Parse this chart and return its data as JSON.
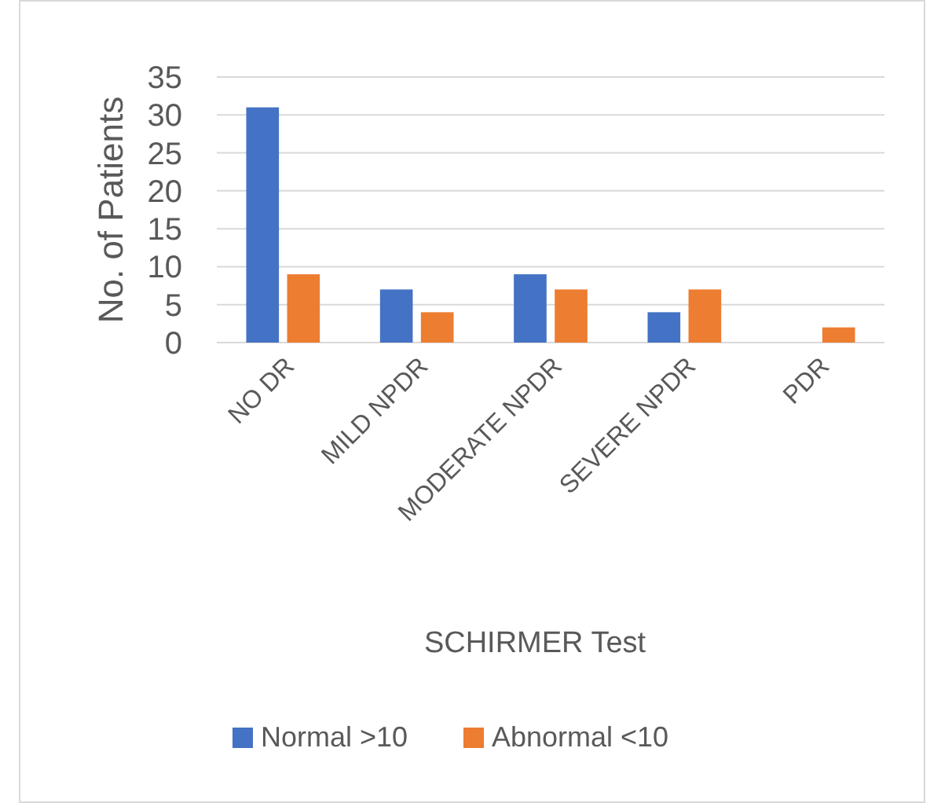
{
  "chart_data": {
    "type": "bar",
    "xlabel": "SCHIRMER Test",
    "ylabel": "No. of Patients",
    "categories": [
      "NO DR",
      "MILD NPDR",
      "MODERATE NPDR",
      "SEVERE NPDR",
      "PDR"
    ],
    "series": [
      {
        "name": "Normal >10",
        "color": "#4472c4",
        "values": [
          31,
          7,
          9,
          4,
          0
        ]
      },
      {
        "name": "Abnormal <10",
        "color": "#ed7d31",
        "values": [
          9,
          4,
          7,
          7,
          2
        ]
      }
    ],
    "ylim": [
      0,
      35
    ],
    "yticks": [
      0,
      5,
      10,
      15,
      20,
      25,
      30,
      35
    ],
    "grid": "y",
    "legend": "bottom"
  }
}
